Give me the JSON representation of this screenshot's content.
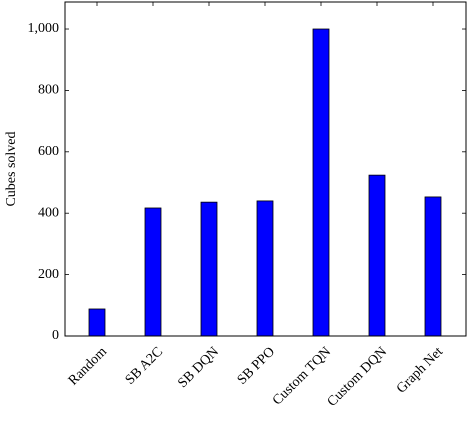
{
  "chart_data": {
    "type": "bar",
    "y_label": "Cubes solved",
    "categories": [
      "Random",
      "SB A2C",
      "SB DQN",
      "SB PPO",
      "Custom TQN",
      "Custom DQN",
      "Graph Net"
    ],
    "values": [
      88,
      417,
      436,
      440,
      1000,
      524,
      453
    ],
    "color": "#0000ff",
    "ylim": [
      0,
      1088
    ],
    "yticks": [
      0,
      200,
      400,
      600,
      800,
      {
        "value": 1000,
        "label": "1,000"
      }
    ],
    "grid": false
  }
}
